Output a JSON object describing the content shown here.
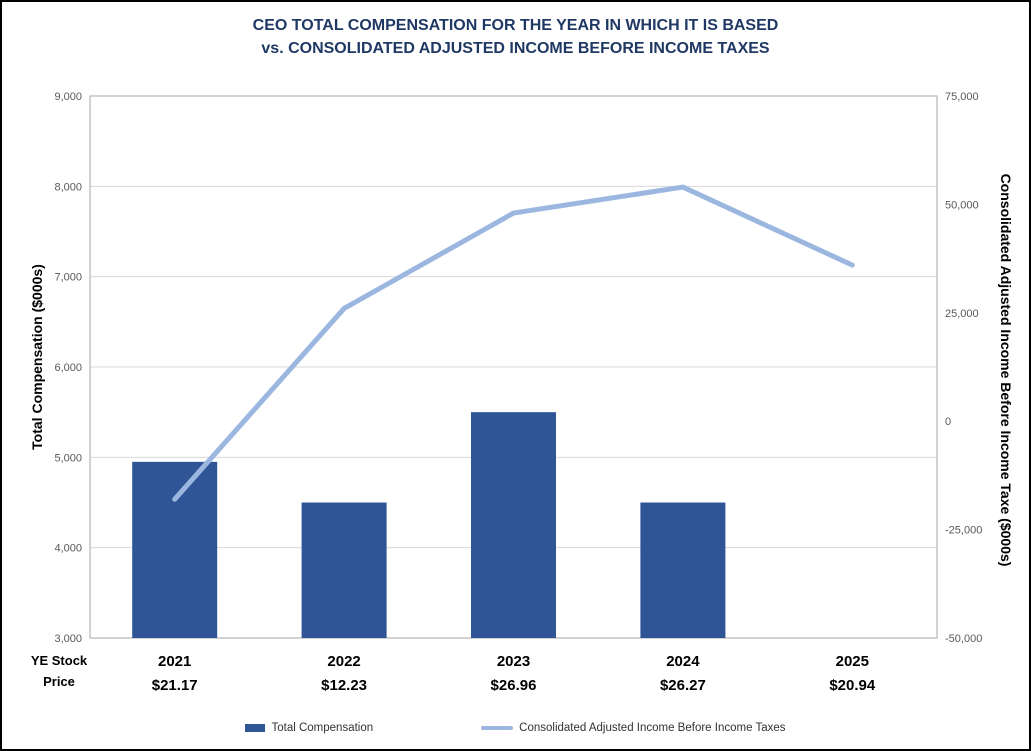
{
  "title": {
    "line1": "CEO TOTAL COMPENSATION FOR THE YEAR IN WHICH IT IS BASED",
    "line2": "vs. CONSOLIDATED ADJUSTED INCOME BEFORE INCOME TAXES"
  },
  "chart_data": {
    "type": "bar+line combo",
    "categories": [
      "2021",
      "2022",
      "2023",
      "2024",
      "2025"
    ],
    "x_sublabels": [
      "$21.17",
      "$12.23",
      "$26.96",
      "$26.27",
      "$20.94"
    ],
    "x_sublabel_title_line1": "YE Stock",
    "x_sublabel_title_line2": "Price",
    "series": [
      {
        "name": "Total Compensation",
        "type": "bar",
        "axis": "left",
        "color": "#2F5597",
        "values": [
          4950,
          4500,
          5500,
          4500,
          null
        ]
      },
      {
        "name": "Consolidated Adjusted Income Before Income Taxes",
        "type": "line",
        "axis": "right",
        "color": "#9BB7E0",
        "values": [
          -18000,
          26000,
          48000,
          54000,
          36000
        ]
      }
    ],
    "left_axis": {
      "label": "Total Compensation ($000s)",
      "min": 3000,
      "max": 9000,
      "step": 1000,
      "ticks": [
        "9,000",
        "8,000",
        "7,000",
        "6,000",
        "5,000",
        "4,000",
        "3,000"
      ]
    },
    "right_axis": {
      "label": "Consolidated Adjusted Income Before Income Taxe ($000s)",
      "min": -50000,
      "max": 75000,
      "step": 25000,
      "ticks": [
        "75,000",
        "50,000",
        "25,000",
        "0",
        "-25,000",
        "-50,000"
      ]
    },
    "grid": true,
    "legend_position": "bottom"
  },
  "legend": {
    "items": [
      {
        "label": "Total Compensation",
        "color": "#2F5597",
        "marker": "rect"
      },
      {
        "label": "Consolidated Adjusted Income Before Income Taxes",
        "color": "#9BB7E0",
        "marker": "line"
      }
    ]
  }
}
